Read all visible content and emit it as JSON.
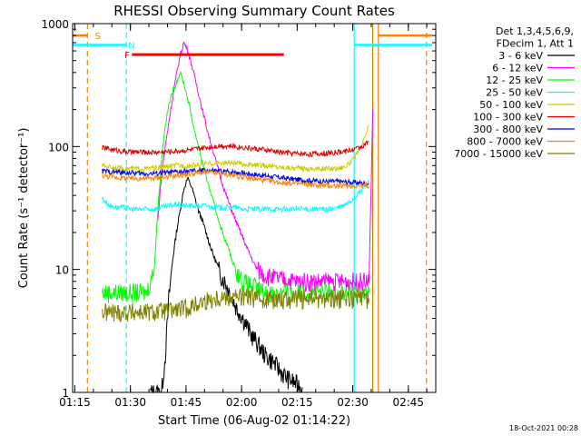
{
  "chart_data": {
    "type": "line",
    "title": "RHESSI Observing Summary Count Rates",
    "xlabel": "Start Time (06-Aug-02 01:14:22)",
    "ylabel": "Count Rate (s⁻¹ detector⁻¹)",
    "y_scale": "log",
    "ylim": [
      1,
      1000
    ],
    "xlim_minutes": [
      0,
      98
    ],
    "x_ticks": [
      {
        "label": "01:15",
        "value": 0.6
      },
      {
        "label": "01:30",
        "value": 15.6
      },
      {
        "label": "01:45",
        "value": 30.6
      },
      {
        "label": "02:00",
        "value": 45.6
      },
      {
        "label": "02:15",
        "value": 60.6
      },
      {
        "label": "02:30",
        "value": 75.6
      },
      {
        "label": "02:45",
        "value": 90.6
      }
    ],
    "y_ticks": [
      {
        "label": "1",
        "value": 1
      },
      {
        "label": "10",
        "value": 10
      },
      {
        "label": "100",
        "value": 100
      },
      {
        "label": "1000",
        "value": 1000
      }
    ],
    "legend": {
      "header": [
        "Det 1,3,4,5,6,9,",
        "FDecim 1, Att 1"
      ],
      "placement": "right"
    },
    "series": [
      {
        "name": "3 - 6 keV",
        "color": "#000000",
        "points": [
          [
            21,
            1
          ],
          [
            22,
            1
          ],
          [
            23,
            1
          ],
          [
            24,
            1
          ],
          [
            25,
            2
          ],
          [
            26,
            6
          ],
          [
            27,
            12
          ],
          [
            28,
            20
          ],
          [
            29,
            30
          ],
          [
            30,
            45
          ],
          [
            31,
            55
          ],
          [
            32,
            48
          ],
          [
            33,
            38
          ],
          [
            34,
            30
          ],
          [
            35,
            25
          ],
          [
            36,
            20
          ],
          [
            37,
            16
          ],
          [
            38,
            13
          ],
          [
            39,
            11
          ],
          [
            40,
            9
          ],
          [
            41,
            8
          ],
          [
            42,
            7
          ],
          [
            43,
            6
          ],
          [
            44,
            5
          ],
          [
            45,
            4.5
          ],
          [
            46,
            4
          ],
          [
            47,
            3.5
          ],
          [
            48,
            3
          ],
          [
            50,
            2.5
          ],
          [
            52,
            2
          ],
          [
            54,
            1.8
          ],
          [
            56,
            1.5
          ],
          [
            58,
            1.3
          ],
          [
            60,
            1.2
          ],
          [
            62,
            1.1
          ]
        ]
      },
      {
        "name": "6 - 12 keV",
        "color": "#ff00ff",
        "points": [
          [
            23,
            25
          ],
          [
            24,
            60
          ],
          [
            25,
            100
          ],
          [
            26,
            160
          ],
          [
            27,
            250
          ],
          [
            28,
            380
          ],
          [
            29,
            550
          ],
          [
            30,
            700
          ],
          [
            31,
            620
          ],
          [
            32,
            480
          ],
          [
            33,
            360
          ],
          [
            34,
            270
          ],
          [
            35,
            200
          ],
          [
            36,
            150
          ],
          [
            37,
            115
          ],
          [
            38,
            90
          ],
          [
            39,
            70
          ],
          [
            40,
            55
          ],
          [
            41,
            44
          ],
          [
            42,
            36
          ],
          [
            43,
            30
          ],
          [
            44,
            25
          ],
          [
            45,
            21
          ],
          [
            46,
            18
          ],
          [
            47,
            15
          ],
          [
            48,
            13
          ],
          [
            49,
            11
          ],
          [
            50,
            10
          ],
          [
            52,
            9
          ],
          [
            55,
            8.5
          ],
          [
            58,
            8.2
          ],
          [
            61,
            8
          ],
          [
            64,
            8
          ],
          [
            67,
            8
          ],
          [
            70,
            8
          ],
          [
            73,
            8
          ],
          [
            76,
            8
          ],
          [
            79,
            8
          ],
          [
            80,
            8
          ],
          [
            81,
            200
          ]
        ]
      },
      {
        "name": "12 - 25 keV",
        "color": "#00ff00",
        "points": [
          [
            8,
            6.5
          ],
          [
            12,
            6.5
          ],
          [
            16,
            6.5
          ],
          [
            20,
            6.5
          ],
          [
            22,
            10
          ],
          [
            23,
            30
          ],
          [
            24,
            80
          ],
          [
            25,
            150
          ],
          [
            26,
            220
          ],
          [
            27,
            280
          ],
          [
            28,
            330
          ],
          [
            29,
            400
          ],
          [
            30,
            330
          ],
          [
            31,
            250
          ],
          [
            32,
            180
          ],
          [
            33,
            130
          ],
          [
            34,
            100
          ],
          [
            35,
            75
          ],
          [
            36,
            58
          ],
          [
            37,
            45
          ],
          [
            38,
            35
          ],
          [
            39,
            28
          ],
          [
            40,
            22
          ],
          [
            41,
            18
          ],
          [
            42,
            15
          ],
          [
            43,
            12
          ],
          [
            44,
            10
          ],
          [
            45,
            9
          ],
          [
            46,
            8
          ],
          [
            48,
            7.5
          ],
          [
            50,
            7
          ],
          [
            52,
            6.5
          ],
          [
            56,
            6.5
          ],
          [
            60,
            6.5
          ],
          [
            64,
            6.5
          ],
          [
            68,
            6.5
          ],
          [
            72,
            6.5
          ],
          [
            76,
            6.5
          ],
          [
            80,
            6.5
          ]
        ]
      },
      {
        "name": "25 - 50 keV",
        "color": "#00ffff",
        "points": [
          [
            8,
            38
          ],
          [
            10,
            33
          ],
          [
            12,
            32
          ],
          [
            14,
            32
          ],
          [
            16,
            31
          ],
          [
            18,
            31
          ],
          [
            20,
            31
          ],
          [
            22,
            31
          ],
          [
            24,
            32
          ],
          [
            26,
            33
          ],
          [
            28,
            34
          ],
          [
            30,
            33
          ],
          [
            32,
            33
          ],
          [
            34,
            33
          ],
          [
            36,
            33
          ],
          [
            38,
            32
          ],
          [
            40,
            32
          ],
          [
            42,
            32
          ],
          [
            44,
            32
          ],
          [
            46,
            31
          ],
          [
            48,
            31
          ],
          [
            50,
            31
          ],
          [
            52,
            31
          ],
          [
            54,
            31
          ],
          [
            56,
            31
          ],
          [
            58,
            31
          ],
          [
            60,
            31
          ],
          [
            62,
            31
          ],
          [
            64,
            31
          ],
          [
            66,
            31
          ],
          [
            68,
            31
          ],
          [
            70,
            31
          ],
          [
            72,
            32
          ],
          [
            74,
            34
          ],
          [
            76,
            38
          ],
          [
            78,
            44
          ],
          [
            80,
            52
          ]
        ]
      },
      {
        "name": "50 - 100 keV",
        "color": "#cccc00",
        "points": [
          [
            8,
            70
          ],
          [
            12,
            67
          ],
          [
            16,
            66
          ],
          [
            20,
            66
          ],
          [
            24,
            68
          ],
          [
            28,
            70
          ],
          [
            32,
            70
          ],
          [
            36,
            72
          ],
          [
            40,
            74
          ],
          [
            44,
            73
          ],
          [
            48,
            71
          ],
          [
            52,
            70
          ],
          [
            56,
            68
          ],
          [
            60,
            67
          ],
          [
            64,
            66
          ],
          [
            68,
            66
          ],
          [
            72,
            67
          ],
          [
            74,
            70
          ],
          [
            76,
            80
          ],
          [
            78,
            100
          ],
          [
            80,
            150
          ]
        ]
      },
      {
        "name": "100 - 300 keV",
        "color": "#dd0000",
        "points": [
          [
            8,
            98
          ],
          [
            12,
            93
          ],
          [
            16,
            90
          ],
          [
            20,
            90
          ],
          [
            24,
            90
          ],
          [
            28,
            92
          ],
          [
            32,
            94
          ],
          [
            36,
            98
          ],
          [
            40,
            102
          ],
          [
            44,
            100
          ],
          [
            48,
            97
          ],
          [
            52,
            94
          ],
          [
            56,
            90
          ],
          [
            60,
            88
          ],
          [
            64,
            87
          ],
          [
            68,
            88
          ],
          [
            72,
            90
          ],
          [
            76,
            95
          ],
          [
            78,
            100
          ],
          [
            80,
            110
          ]
        ]
      },
      {
        "name": "300 - 800 keV",
        "color": "#0000dd",
        "points": [
          [
            8,
            63
          ],
          [
            12,
            62
          ],
          [
            16,
            61
          ],
          [
            20,
            60
          ],
          [
            24,
            61
          ],
          [
            28,
            62
          ],
          [
            32,
            63
          ],
          [
            36,
            64
          ],
          [
            40,
            63
          ],
          [
            44,
            62
          ],
          [
            48,
            60
          ],
          [
            52,
            58
          ],
          [
            56,
            56
          ],
          [
            60,
            54
          ],
          [
            64,
            53
          ],
          [
            68,
            52
          ],
          [
            72,
            52
          ],
          [
            76,
            51
          ],
          [
            80,
            50
          ]
        ]
      },
      {
        "name": "800 - 7000 keV",
        "color": "#ff8000",
        "points": [
          [
            8,
            58
          ],
          [
            12,
            56
          ],
          [
            16,
            55
          ],
          [
            20,
            55
          ],
          [
            24,
            56
          ],
          [
            28,
            58
          ],
          [
            32,
            60
          ],
          [
            36,
            62
          ],
          [
            40,
            60
          ],
          [
            44,
            58
          ],
          [
            48,
            55
          ],
          [
            52,
            53
          ],
          [
            56,
            51
          ],
          [
            60,
            50
          ],
          [
            64,
            49
          ],
          [
            68,
            48
          ],
          [
            72,
            48
          ],
          [
            76,
            48
          ],
          [
            80,
            48
          ]
        ]
      },
      {
        "name": "7000 - 15000 keV",
        "color": "#808000",
        "points": [
          [
            8,
            4.5
          ],
          [
            12,
            4.5
          ],
          [
            16,
            4.5
          ],
          [
            20,
            4.5
          ],
          [
            22,
            4.5
          ],
          [
            24,
            4.6
          ],
          [
            26,
            4.6
          ],
          [
            28,
            4.7
          ],
          [
            30,
            4.8
          ],
          [
            32,
            5
          ],
          [
            34,
            5.3
          ],
          [
            36,
            5.6
          ],
          [
            38,
            5.8
          ],
          [
            40,
            6
          ],
          [
            44,
            6
          ],
          [
            48,
            6
          ],
          [
            52,
            5.8
          ],
          [
            56,
            5.8
          ],
          [
            60,
            5.8
          ],
          [
            64,
            5.8
          ],
          [
            68,
            5.8
          ],
          [
            72,
            5.8
          ],
          [
            76,
            5.8
          ],
          [
            80,
            5.8
          ]
        ]
      }
    ],
    "vlines": [
      {
        "x": 4,
        "color": "#ff8000",
        "style": "dashed"
      },
      {
        "x": 14.5,
        "color": "#00ffff",
        "style": "dashed"
      },
      {
        "x": 76,
        "color": "#00ffff",
        "style": "solid"
      },
      {
        "x": 81,
        "color": "#d08000",
        "style": "solid"
      },
      {
        "x": 82.5,
        "color": "#ff8000",
        "style": "solid"
      },
      {
        "x": 95.5,
        "color": "#ff8000",
        "style": "dashed"
      }
    ],
    "flags": [
      {
        "label": "S",
        "color": "#ff8000",
        "x_from": 0,
        "x_to": 4,
        "y": 800,
        "label_x": 6
      },
      {
        "label": "N",
        "color": "#00ffff",
        "x_from": 0,
        "x_to": 14.5,
        "y": 670,
        "label_x": 15
      },
      {
        "label": "F",
        "color": "#ff0000",
        "x_from": 16,
        "x_to": 57,
        "y": 560,
        "label_x": 14
      },
      {
        "label": "",
        "color": "#ff8000",
        "x_from": 82.5,
        "x_to": 97,
        "y": 800
      },
      {
        "label": "",
        "color": "#00ffff",
        "x_from": 76,
        "x_to": 97,
        "y": 670
      }
    ]
  },
  "footer": {
    "timestamp": "18-Oct-2021 00:28"
  }
}
